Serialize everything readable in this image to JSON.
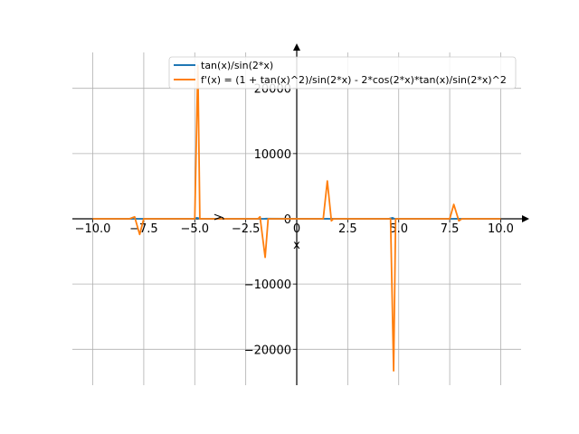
{
  "chart_data": {
    "type": "line",
    "title": "",
    "xlabel": "x",
    "ylabel": "y",
    "xlim": [
      -11.0,
      11.0
    ],
    "ylim": [
      -25500,
      25500
    ],
    "xticks": [
      -10.0,
      -7.5,
      -5.0,
      -2.5,
      0,
      2.5,
      5.0,
      7.5,
      10.0
    ],
    "xtick_labels": [
      "−10.0",
      "−7.5",
      "−5.0",
      "−2.5",
      "0",
      "2.5",
      "5.0",
      "7.5",
      "10.0"
    ],
    "yticks": [
      -20000,
      -10000,
      0,
      10000,
      20000
    ],
    "ytick_labels": [
      "−20000",
      "−10000",
      "0",
      "10000",
      "20000"
    ],
    "grid": true,
    "legend_position": "top-right",
    "series": [
      {
        "name": "tan(x)/sin(2*x)",
        "color": "#1f77b4",
        "x": [
          -10,
          -8,
          -7.9,
          -7.8,
          -5.0,
          -4.9,
          -4.7,
          -2.0,
          -1.6,
          -1.5,
          1.3,
          1.5,
          1.6,
          4.5,
          4.7,
          4.8,
          7.6,
          7.8,
          8.0,
          10
        ],
        "y": [
          0,
          0,
          30,
          0,
          0,
          150,
          0,
          0,
          0,
          30,
          0,
          20,
          0,
          0,
          150,
          0,
          0,
          20,
          0,
          0
        ]
      },
      {
        "name": "f'(x) = (1 + tan(x)^2)/sin(2*x) - 2*cos(2*x)*tan(x)/sin(2*x)^2",
        "color": "#ff7f0e",
        "x": [
          -10,
          -8.2,
          -7.95,
          -7.7,
          -7.5,
          -5.0,
          -4.85,
          -4.75,
          -1.9,
          -1.8,
          -1.55,
          -1.4,
          -1.3,
          1.3,
          1.5,
          1.7,
          1.8,
          4.6,
          4.75,
          4.85,
          5.0,
          7.5,
          7.7,
          7.95,
          8.1,
          10
        ],
        "y": [
          0,
          0,
          300,
          -2400,
          0,
          0,
          23500,
          0,
          0,
          300,
          -5900,
          0,
          0,
          0,
          5800,
          -300,
          0,
          0,
          -23300,
          0,
          0,
          0,
          2200,
          -300,
          0,
          0
        ]
      }
    ]
  }
}
